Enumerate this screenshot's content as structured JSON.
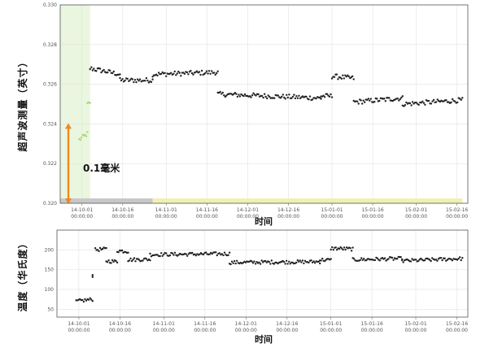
{
  "chart_data": [
    {
      "type": "scatter",
      "ylabel": "超声波测量（英寸）",
      "xlabel": "时间",
      "x_ticks": [
        "14-10-01 00:00:00",
        "14-10-16 00:00:00",
        "14-11-01 00:00:00",
        "14-11-16 00:00:00",
        "14-12-01 00:00:00",
        "14-12-16 00:00:00",
        "15-01-01 00:00:00",
        "15-01-16 00:00:00",
        "15-02-01 00:00:00",
        "15-02-16 00:00:00"
      ],
      "y_ticks": [
        "0.330",
        "0.328",
        "0.326",
        "0.324",
        "0.322",
        "0.320"
      ],
      "ylim": [
        0.32,
        0.33
      ],
      "xlim": [
        "2014-09-23",
        "2015-02-20"
      ],
      "grid": true,
      "highlight_region": [
        "2014-09-23",
        "2014-10-04"
      ],
      "annotation": {
        "text": "0.1毫米",
        "y_from": 0.32,
        "y_to": 0.324,
        "x": "2014-09-26",
        "color": "#f0891f"
      },
      "series": [
        {
          "color": "#a6d96a",
          "segments": [
            {
              "x": [
                "2014-09-30",
                "2014-10-03"
              ],
              "y": [
                0.3232,
                0.3235
              ]
            },
            {
              "x": [
                "2014-10-03",
                "2014-10-04"
              ],
              "y": [
                0.325,
                0.325
              ]
            }
          ]
        },
        {
          "color": "#222222",
          "segments": [
            {
              "x": [
                "2014-10-04",
                "2014-10-15"
              ],
              "y": [
                0.3268,
                0.3265
              ]
            },
            {
              "x": [
                "2014-10-15",
                "2014-10-27"
              ],
              "y": [
                0.3262,
                0.3262
              ]
            },
            {
              "x": [
                "2014-10-27",
                "2014-11-20"
              ],
              "y": [
                0.3265,
                0.3266
              ]
            },
            {
              "x": [
                "2014-11-20",
                "2014-12-28"
              ],
              "y": [
                0.3255,
                0.3253
              ]
            },
            {
              "x": [
                "2014-12-28",
                "2015-01-01"
              ],
              "y": [
                0.3254,
                0.3254
              ]
            },
            {
              "x": [
                "2015-01-01",
                "2015-01-09"
              ],
              "y": [
                0.3264,
                0.3263
              ]
            },
            {
              "x": [
                "2015-01-09",
                "2015-01-27"
              ],
              "y": [
                0.3251,
                0.3253
              ]
            },
            {
              "x": [
                "2015-01-27",
                "2015-02-18"
              ],
              "y": [
                0.325,
                0.3252
              ]
            }
          ]
        }
      ],
      "status_bar": [
        {
          "from": "2014-09-23",
          "to": "2014-10-27",
          "color": "#c8c8c8"
        },
        {
          "from": "2014-10-27",
          "to": "2015-02-18",
          "color": "#f0f0b4"
        }
      ]
    },
    {
      "type": "scatter",
      "ylabel": "温度（华氏度）",
      "xlabel": "时间",
      "x_ticks": [
        "14-10-01 00:00:00",
        "14-10-16 00:00:00",
        "14-11-01 00:00:00",
        "14-11-16 00:00:00",
        "14-12-01 00:00:00",
        "14-12-16 00:00:00",
        "15-01-01 00:00:00",
        "15-01-16 00:00:00",
        "15-02-01 00:00:00",
        "15-02-16 00:00:00"
      ],
      "y_ticks": [
        "200",
        "150",
        "100",
        "50"
      ],
      "ylim": [
        30,
        250
      ],
      "xlim": [
        "2014-09-23",
        "2015-02-20"
      ],
      "grid": true,
      "series": [
        {
          "color": "#222222",
          "segments": [
            {
              "x": [
                "2014-09-30",
                "2014-10-06"
              ],
              "y": [
                70,
                75
              ]
            },
            {
              "x": [
                "2014-10-06",
                "2014-10-06"
              ],
              "y": [
                135,
                135
              ]
            },
            {
              "x": [
                "2014-10-07",
                "2014-10-11"
              ],
              "y": [
                200,
                202
              ]
            },
            {
              "x": [
                "2014-10-11",
                "2014-10-15"
              ],
              "y": [
                172,
                170
              ]
            },
            {
              "x": [
                "2014-10-15",
                "2014-10-19"
              ],
              "y": [
                198,
                196
              ]
            },
            {
              "x": [
                "2014-10-19",
                "2014-10-27"
              ],
              "y": [
                175,
                176
              ]
            },
            {
              "x": [
                "2014-10-27",
                "2014-11-25"
              ],
              "y": [
                188,
                190
              ]
            },
            {
              "x": [
                "2014-11-25",
                "2014-12-28"
              ],
              "y": [
                168,
                170
              ]
            },
            {
              "x": [
                "2014-12-28",
                "2015-01-01"
              ],
              "y": [
                175,
                174
              ]
            },
            {
              "x": [
                "2015-01-01",
                "2015-01-09"
              ],
              "y": [
                204,
                202
              ]
            },
            {
              "x": [
                "2015-01-09",
                "2015-01-27"
              ],
              "y": [
                175,
                178
              ]
            },
            {
              "x": [
                "2015-01-27",
                "2015-02-18"
              ],
              "y": [
                172,
                178
              ]
            }
          ]
        }
      ]
    }
  ]
}
